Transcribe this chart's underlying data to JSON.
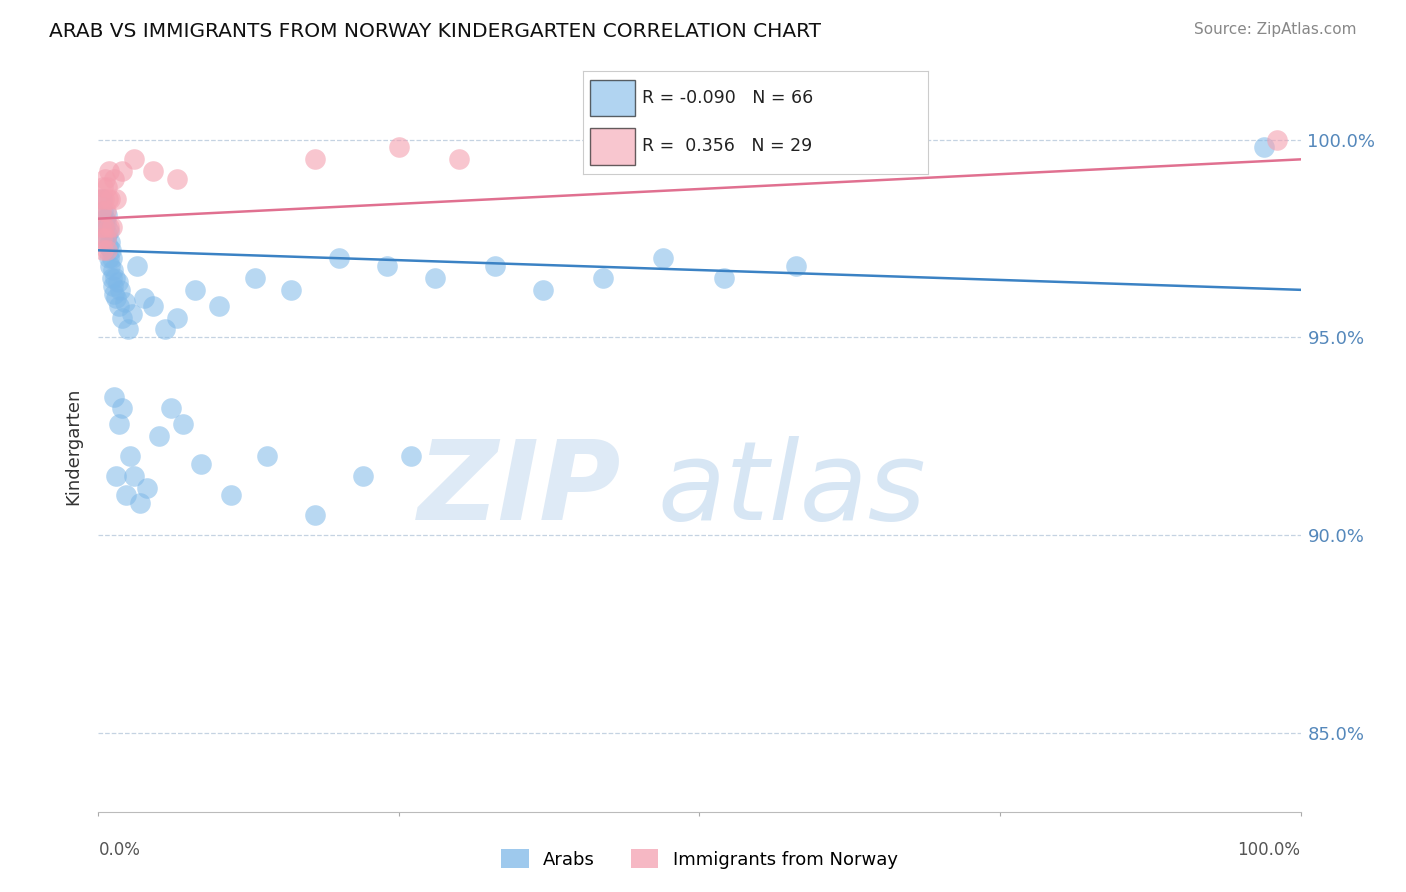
{
  "title": "ARAB VS IMMIGRANTS FROM NORWAY KINDERGARTEN CORRELATION CHART",
  "source": "Source: ZipAtlas.com",
  "ylabel": "Kindergarten",
  "legend_arab_r": "-0.090",
  "legend_arab_n": "66",
  "legend_norway_r": "0.356",
  "legend_norway_n": "29",
  "xlim": [
    0.0,
    100.0
  ],
  "ylim": [
    83.0,
    101.5
  ],
  "yticks": [
    85.0,
    90.0,
    95.0,
    100.0
  ],
  "ytick_labels": [
    "85.0%",
    "90.0%",
    "95.0%",
    "100.0%"
  ],
  "arab_color": "#7EB8E8",
  "norway_color": "#F4A0B0",
  "arab_line_color": "#3B82C4",
  "norway_line_color": "#E07090",
  "background_color": "#FFFFFF",
  "arab_x": [
    0.3,
    0.4,
    0.5,
    0.55,
    0.6,
    0.65,
    0.7,
    0.75,
    0.8,
    0.85,
    0.9,
    0.95,
    1.0,
    1.05,
    1.1,
    1.15,
    1.2,
    1.25,
    1.3,
    1.4,
    1.5,
    1.6,
    1.7,
    1.8,
    2.0,
    2.2,
    2.5,
    2.8,
    3.2,
    3.8,
    4.5,
    5.5,
    6.5,
    8.0,
    10.0,
    13.0,
    16.0,
    20.0,
    24.0,
    28.0,
    33.0,
    37.0,
    42.0,
    47.0,
    52.0,
    58.0,
    97.0,
    1.3,
    1.5,
    1.7,
    2.0,
    2.3,
    2.6,
    3.0,
    3.5,
    4.0,
    5.0,
    6.0,
    7.0,
    8.5,
    11.0,
    14.0,
    18.0,
    22.0,
    26.0
  ],
  "arab_y": [
    98.5,
    98.2,
    97.8,
    98.0,
    97.5,
    97.9,
    97.6,
    98.1,
    97.3,
    97.7,
    97.0,
    97.4,
    96.8,
    97.2,
    96.5,
    97.0,
    96.3,
    96.7,
    96.1,
    96.5,
    96.0,
    96.4,
    95.8,
    96.2,
    95.5,
    95.9,
    95.2,
    95.6,
    96.8,
    96.0,
    95.8,
    95.2,
    95.5,
    96.2,
    95.8,
    96.5,
    96.2,
    97.0,
    96.8,
    96.5,
    96.8,
    96.2,
    96.5,
    97.0,
    96.5,
    96.8,
    99.8,
    93.5,
    91.5,
    92.8,
    93.2,
    91.0,
    92.0,
    91.5,
    90.8,
    91.2,
    92.5,
    93.2,
    92.8,
    91.8,
    91.0,
    92.0,
    90.5,
    91.5,
    92.0
  ],
  "norway_x": [
    0.15,
    0.2,
    0.25,
    0.3,
    0.35,
    0.4,
    0.45,
    0.5,
    0.55,
    0.6,
    0.65,
    0.7,
    0.75,
    0.8,
    0.85,
    0.9,
    1.0,
    1.1,
    1.3,
    1.5,
    2.0,
    3.0,
    4.5,
    6.5,
    18.0,
    25.0,
    30.0,
    55.0,
    98.0
  ],
  "norway_y": [
    98.5,
    97.8,
    98.2,
    97.5,
    98.8,
    97.2,
    98.5,
    97.8,
    99.0,
    98.2,
    97.5,
    98.8,
    97.2,
    98.5,
    97.8,
    99.2,
    98.5,
    97.8,
    99.0,
    98.5,
    99.2,
    99.5,
    99.2,
    99.0,
    99.5,
    99.8,
    99.5,
    100.0,
    100.0
  ],
  "arab_trend_x0": 0.0,
  "arab_trend_y0": 97.2,
  "arab_trend_x1": 100.0,
  "arab_trend_y1": 96.2,
  "norway_trend_x0": 0.0,
  "norway_trend_y0": 98.0,
  "norway_trend_x1": 100.0,
  "norway_trend_y1": 99.5
}
